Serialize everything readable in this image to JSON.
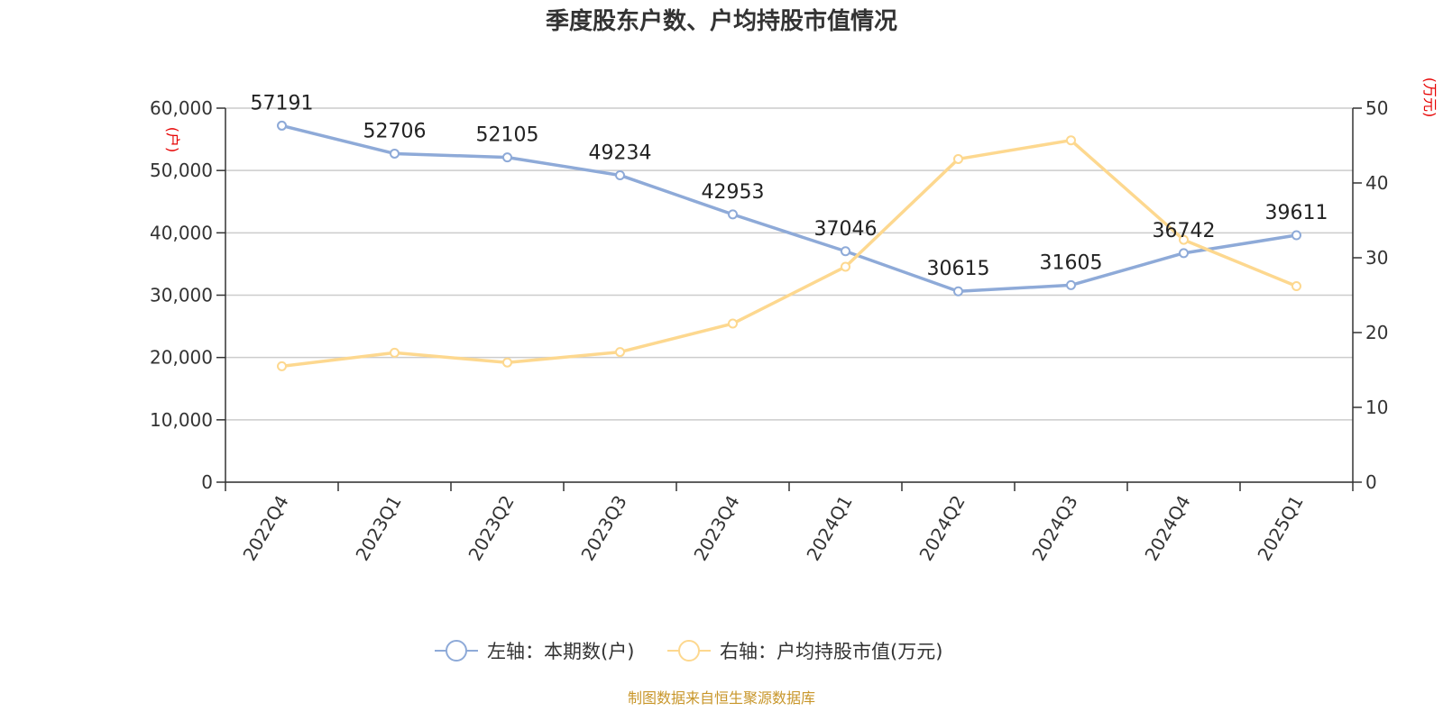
{
  "chart_data": {
    "type": "line",
    "title": "季度股东户数、户均持股市值情况",
    "categories": [
      "2022Q4",
      "2023Q1",
      "2023Q2",
      "2023Q3",
      "2023Q4",
      "2024Q1",
      "2024Q2",
      "2024Q3",
      "2024Q4",
      "2025Q1"
    ],
    "y_left": {
      "unit": "(户)",
      "min": 0,
      "max": 60000,
      "ticks": [
        "0",
        "10,000",
        "20,000",
        "30,000",
        "40,000",
        "50,000",
        "60,000"
      ]
    },
    "y_right": {
      "unit": "(万元)",
      "min": 0,
      "max": 50,
      "ticks": [
        "0",
        "10",
        "20",
        "30",
        "40",
        "50"
      ]
    },
    "grid": true,
    "legend_position": "bottom",
    "series": [
      {
        "name": "左轴：本期数(户)",
        "axis": "left",
        "color": "#8eaad8",
        "values": [
          57191,
          52706,
          52105,
          49234,
          42953,
          37046,
          30615,
          31605,
          36742,
          39611
        ],
        "labels": [
          "57191",
          "52706",
          "52105",
          "49234",
          "42953",
          "37046",
          "30615",
          "31605",
          "36742",
          "39611"
        ]
      },
      {
        "name": "右轴：户均持股市值(万元)",
        "axis": "right",
        "color": "#fdd88f",
        "values": [
          15.5,
          17.3,
          16.0,
          17.4,
          21.2,
          28.8,
          43.2,
          45.7,
          32.4,
          26.2
        ]
      }
    ],
    "source": "制图数据来自恒生聚源数据库"
  }
}
